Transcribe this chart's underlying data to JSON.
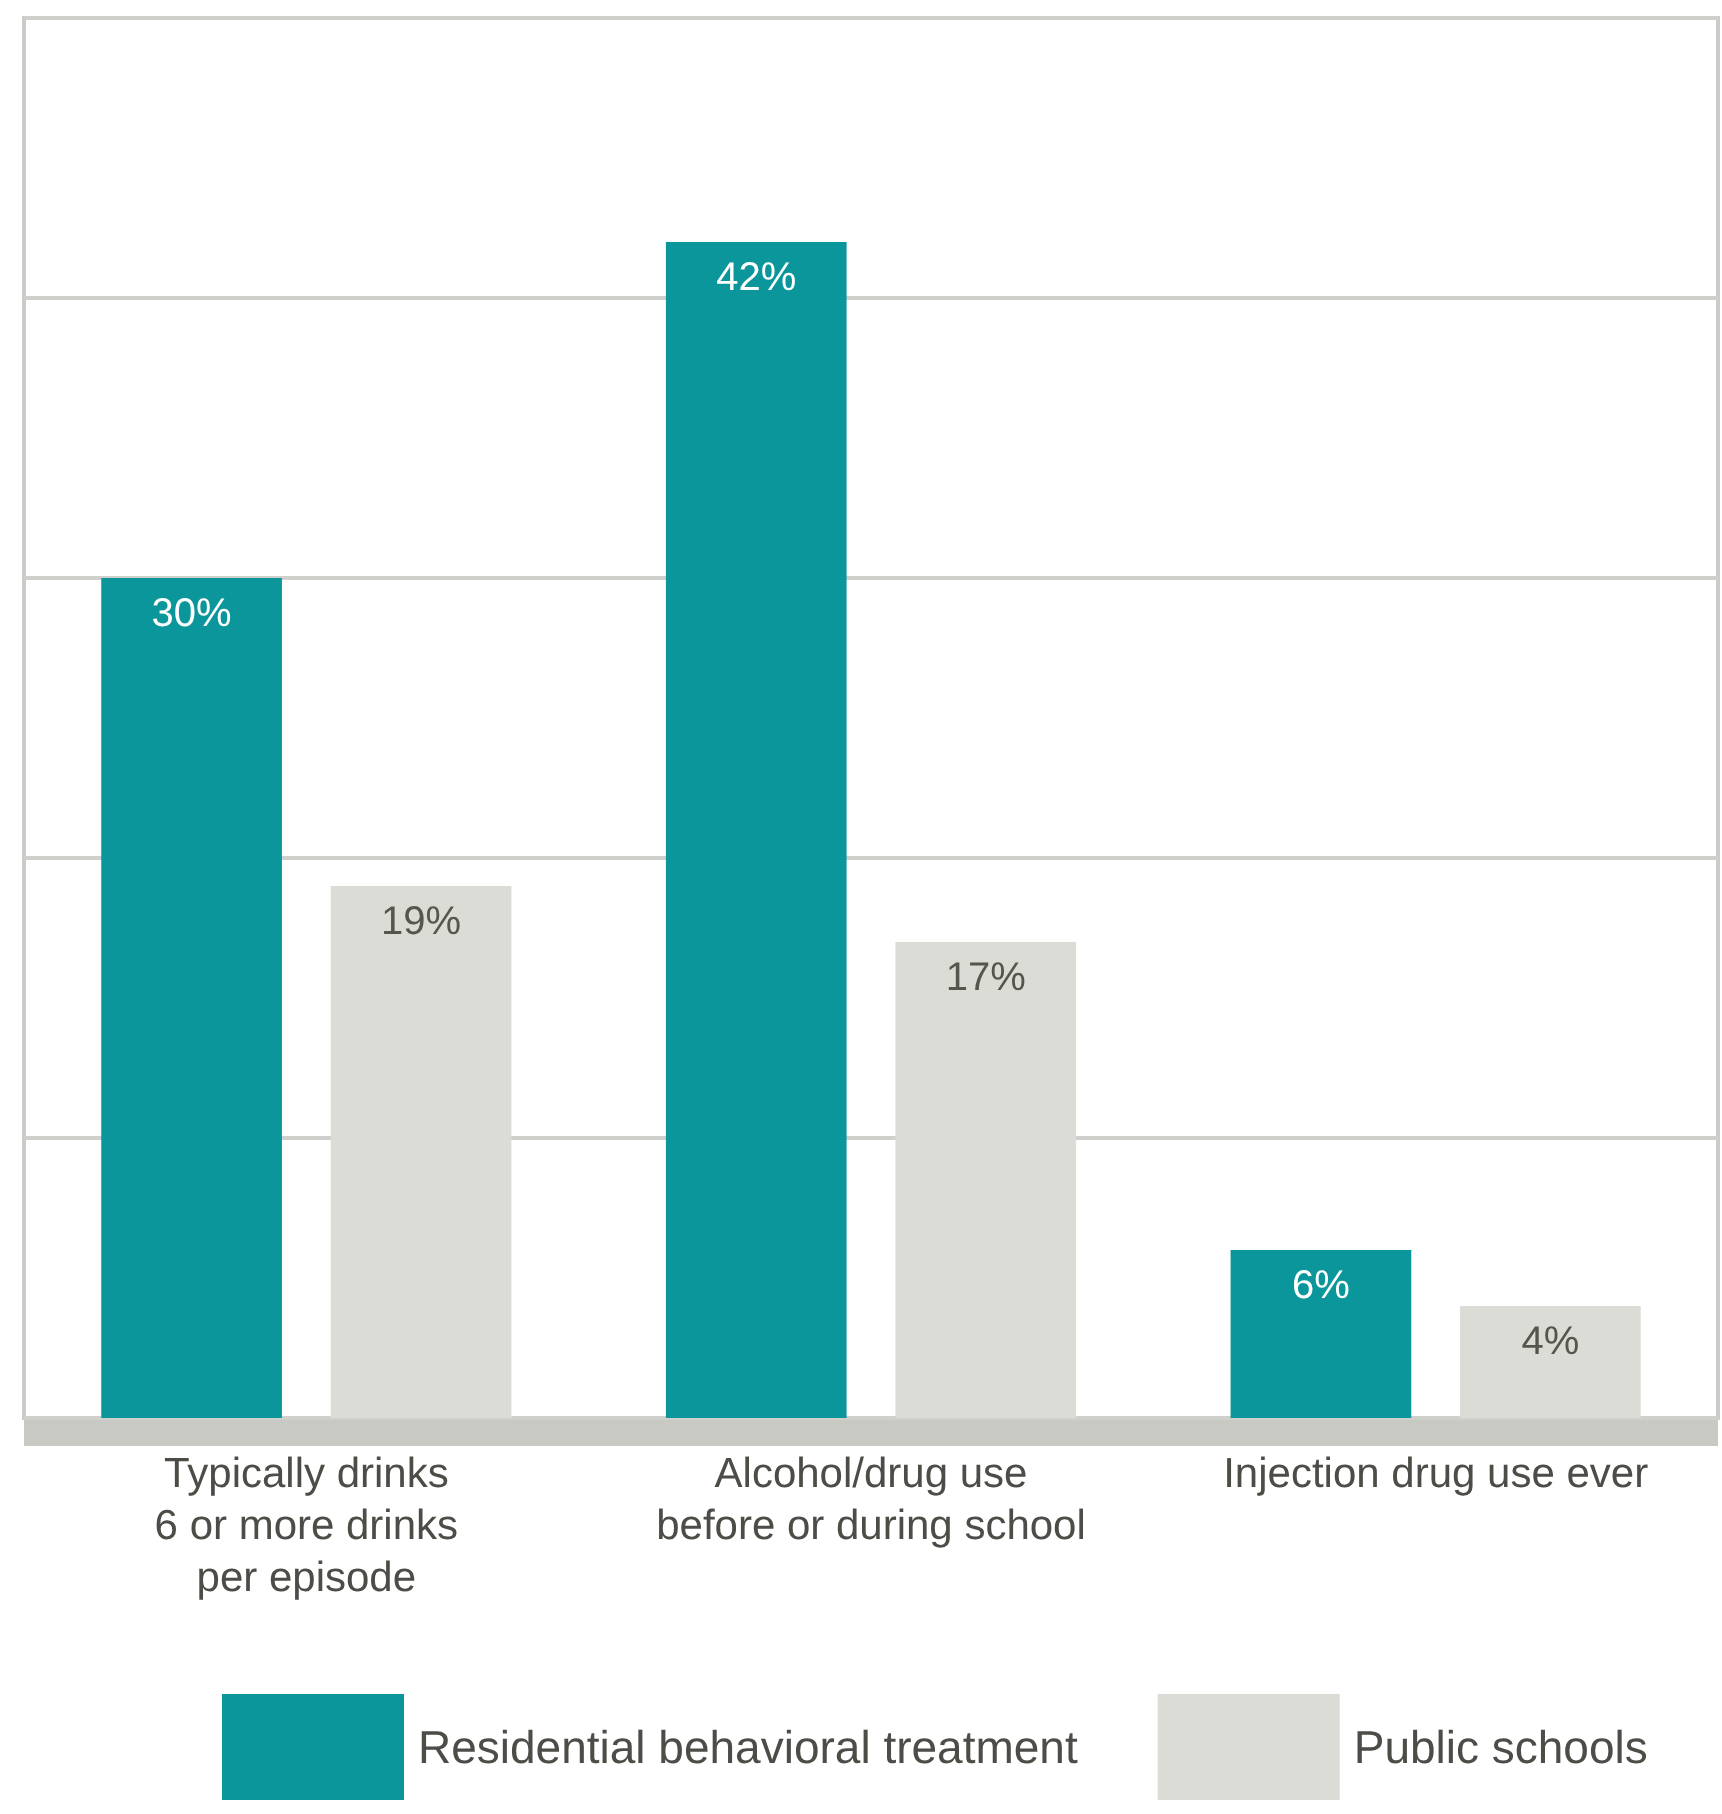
{
  "chart_data": {
    "type": "bar",
    "categories": [
      "Typically drinks\n6 or more drinks\nper episode",
      "Alcohol/drug use\nbefore or during school",
      "Injection drug use ever"
    ],
    "series": [
      {
        "name": "Residential behavioral treatment",
        "color": "#0b969b",
        "values": [
          30,
          42,
          6
        ],
        "value_labels": [
          "30%",
          "42%",
          "6%"
        ]
      },
      {
        "name": "Public schools",
        "color": "#dcdcd6",
        "values": [
          19,
          17,
          4
        ],
        "value_labels": [
          "19%",
          "17%",
          "4%"
        ]
      }
    ],
    "ylim": [
      0,
      50
    ],
    "yticks": [
      {
        "value": 0,
        "label": null
      },
      {
        "value": 10,
        "label": null
      },
      {
        "value": 20,
        "label": null
      },
      {
        "value": 30,
        "label": null
      },
      {
        "value": 40,
        "label": null
      },
      {
        "value": 50,
        "label": null
      }
    ],
    "grid": "y",
    "legend": "bottom",
    "tick_labels": "x"
  }
}
